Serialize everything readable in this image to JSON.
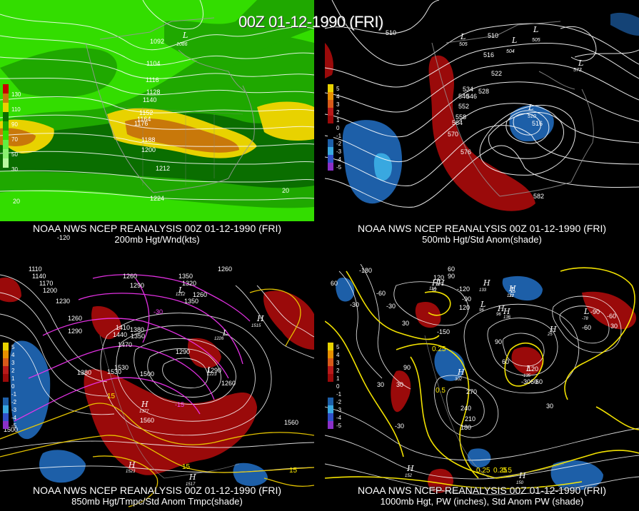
{
  "title": "00Z 01-12-1990 (FRI)",
  "panels": [
    {
      "line1": "NOAA NWS NCEP REANALYSIS 00Z 01-12-1990 (FRI)",
      "line2": "200mb Hgt/Wnd(kts)",
      "colorbar_labels": [
        "130",
        "110",
        "90",
        "70",
        "50",
        "30"
      ],
      "contour_labels": [
        "1092",
        "1104",
        "1116",
        "1128",
        "1140",
        "1152",
        "1164",
        "1176",
        "1188",
        "1200",
        "1212",
        "1224"
      ],
      "extra_labels": [
        "20",
        "-120",
        "20"
      ],
      "low_label": "L",
      "low_value": "1086"
    },
    {
      "line1": "NOAA NWS NCEP REANALYSIS 00Z 01-12-1990 (FRI)",
      "line2": "500mb Hgt/Std Anom(shade)",
      "colorbar_labels": [
        "5",
        "4",
        "3",
        "2",
        "1",
        "0",
        "-1",
        "-2",
        "-3",
        "-4",
        "-5"
      ],
      "contour_labels": [
        "510",
        "510",
        "516",
        "522",
        "528",
        "534",
        "540",
        "546",
        "552",
        "558",
        "564",
        "570",
        "576",
        "582",
        "516"
      ],
      "lows": [
        {
          "label": "L",
          "value": "505"
        },
        {
          "label": "L",
          "value": "504"
        },
        {
          "label": "L",
          "value": "505"
        },
        {
          "label": "L",
          "value": "510"
        },
        {
          "label": "L",
          "value": "573"
        }
      ]
    },
    {
      "line1": "NOAA NWS NCEP REANALYSIS 00Z 01-12-1990 (FRI)",
      "line2": "850mb Hgt/Tmpc/Std Anom Tmpc(shade)",
      "colorbar_labels": [
        "5",
        "4",
        "3",
        "2",
        "1",
        "0",
        "-1",
        "-2",
        "-3",
        "-4",
        "-5"
      ],
      "contour_labels": [
        "1110",
        "1140",
        "1170",
        "1200",
        "1230",
        "1260",
        "1290",
        "1260",
        "1290",
        "1350",
        "1320",
        "1260",
        "1350",
        "1260",
        "1410",
        "1380",
        "1440",
        "1350",
        "1470",
        "1290",
        "1500",
        "1530",
        "1380",
        "1260",
        "1290",
        "1560",
        "1560",
        "1530",
        "1500"
      ],
      "temp_labels": [
        "15",
        "15",
        "15",
        "-15",
        "-30"
      ],
      "pressure_labels": [
        {
          "label": "L",
          "value": "1212"
        },
        {
          "label": "H",
          "value": "1377"
        },
        {
          "label": "H",
          "value": "1523"
        },
        {
          "label": "H",
          "value": "1517"
        },
        {
          "label": "H",
          "value": "1515"
        },
        {
          "label": "L",
          "value": "1226"
        },
        {
          "label": "L",
          "value": "1223"
        }
      ]
    },
    {
      "line1": "NOAA NWS NCEP REANALYSIS 00Z 01-12-1990 (FRI)",
      "line2": "1000mb Hgt, PW (inches), Std Anom PW (shade)",
      "colorbar_labels": [
        "5",
        "4",
        "3",
        "2",
        "1",
        "0",
        "-1",
        "-2",
        "-3",
        "-4",
        "-5"
      ],
      "contour_labels": [
        "-180",
        "120",
        "-60",
        "60",
        "90",
        "-30",
        "-120",
        "-90",
        "60",
        "120",
        "30",
        "-150",
        "90",
        "60",
        "30",
        "270",
        "240",
        "210",
        "180",
        "90",
        "120",
        "60",
        "30",
        "-30",
        "30",
        "-60",
        "-90",
        "-60",
        "30",
        "-30",
        "-3060"
      ],
      "pw_labels": [
        "0.25",
        "0.25",
        "0.25",
        "0.5",
        "0.5"
      ],
      "pressure_labels": [
        {
          "label": "H",
          "value": "52"
        },
        {
          "label": "H",
          "value": "133"
        },
        {
          "label": "H",
          "value": "122"
        },
        {
          "label": "H",
          "value": "96"
        },
        {
          "label": "L",
          "value": "96"
        },
        {
          "label": "H",
          "value": "136"
        },
        {
          "label": "H",
          "value": "25"
        },
        {
          "label": "L",
          "value": "-135"
        },
        {
          "label": "H",
          "value": "302"
        },
        {
          "label": "L",
          "value": "-78"
        },
        {
          "label": "H",
          "value": "152"
        },
        {
          "label": "H",
          "value": "150"
        },
        {
          "label": "H",
          "value": "114"
        },
        {
          "label": "L",
          "value": "31"
        }
      ]
    }
  ],
  "colors": {
    "wind_light": "#33dd00",
    "wind_mid": "#1fa800",
    "wind_dark": "#0a6e00",
    "wind_yellow": "#e8d200",
    "wind_orange": "#c8780a",
    "anom_pos": "#9a0a0a",
    "anom_neg": "#1d5fa8",
    "anom_neg2": "#39a8e0",
    "height_contour": "#ffffff",
    "temp_neg": "#ee33ee",
    "temp_pos": "#eecc00",
    "pw": "#ffee00"
  },
  "icons": [
    "map-background",
    "coastline-outline"
  ]
}
